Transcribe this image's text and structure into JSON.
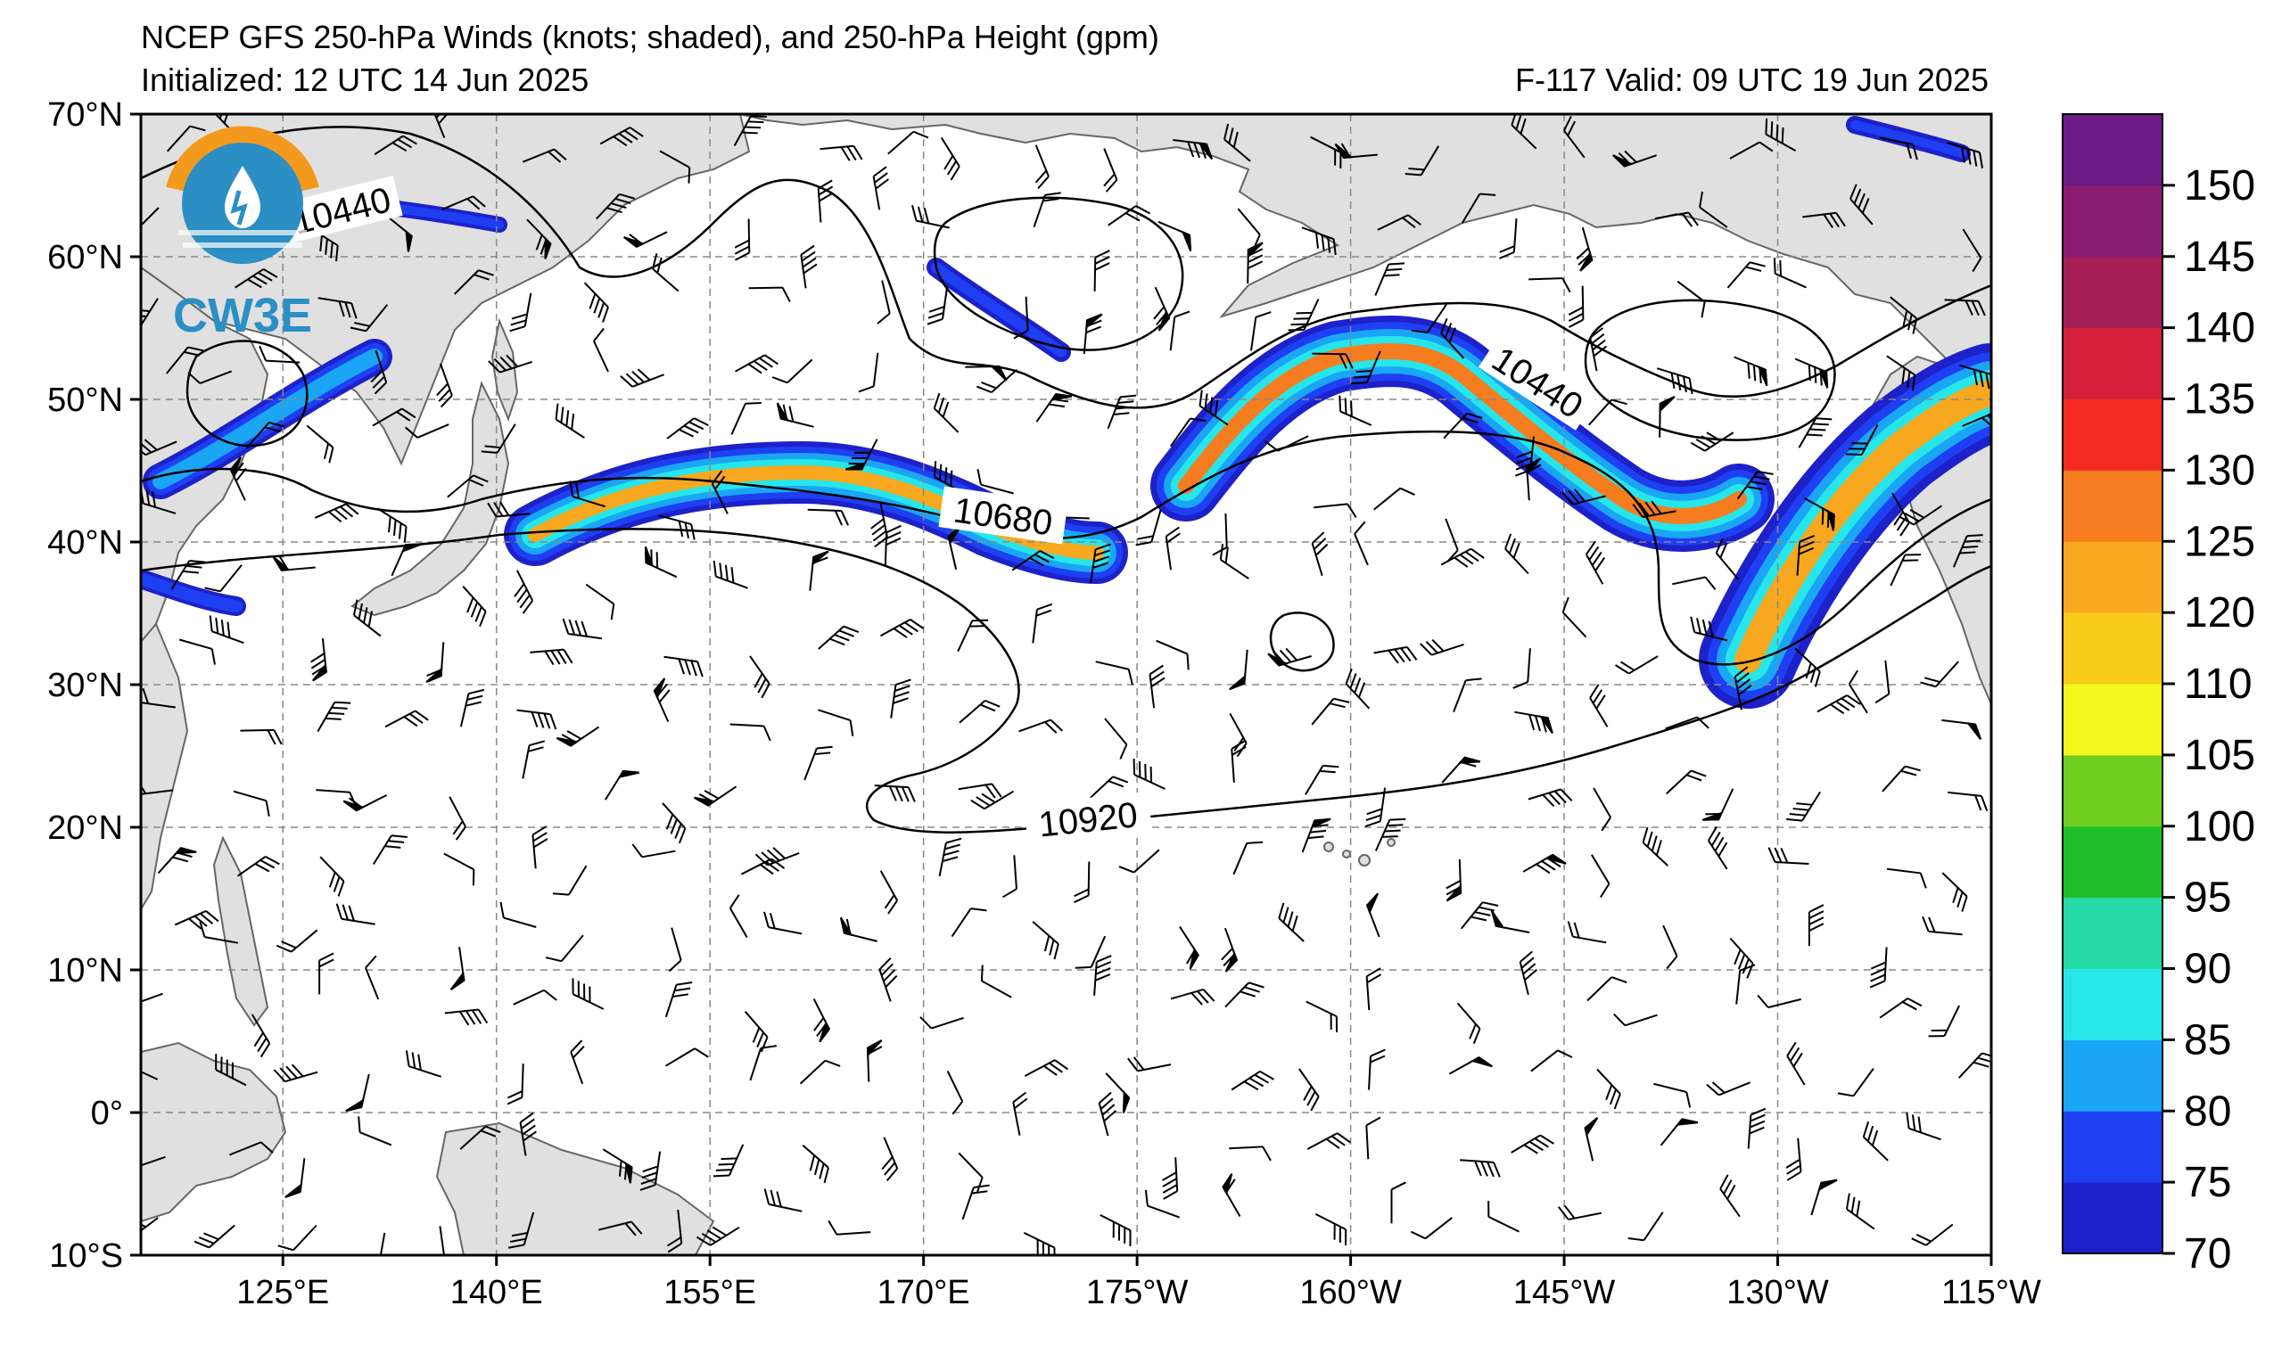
{
  "header": {
    "title": "NCEP GFS 250-hPa Winds (knots; shaded), and 250-hPa Height (gpm)",
    "initialized": "Initialized: 12 UTC 14 Jun 2025",
    "valid": "F-117  Valid: 09 UTC 19 Jun 2025"
  },
  "logo": {
    "text": "CW3E"
  },
  "map": {
    "lat_labels": [
      "70°N",
      "60°N",
      "50°N",
      "40°N",
      "30°N",
      "20°N",
      "10°N",
      "0°",
      "10°S"
    ],
    "lon_labels": [
      "125°E",
      "140°E",
      "155°E",
      "170°E",
      "175°W",
      "160°W",
      "145°W",
      "130°W",
      "115°W"
    ],
    "contour_labels": [
      "10440",
      "10440",
      "10680",
      "10920"
    ]
  },
  "colorbar": {
    "tick_labels": [
      "70",
      "75",
      "80",
      "85",
      "90",
      "95",
      "100",
      "105",
      "110",
      "120",
      "125",
      "130",
      "135",
      "140",
      "145",
      "150"
    ],
    "colors": [
      "#1d21c9",
      "#1f3ff2",
      "#1aa6f5",
      "#26e6ea",
      "#25d9a8",
      "#1fbf2a",
      "#6fce1f",
      "#f4f71e",
      "#f9cc1c",
      "#f8a81f",
      "#f57d20",
      "#f52a20",
      "#d51f3b",
      "#a51d56",
      "#8a1d72",
      "#6d1b86"
    ]
  },
  "colors": {
    "land": "#e0e0e0",
    "ocean": "#ffffff",
    "grid": "#888888",
    "contour": "#000000",
    "logo_orange": "#f39a1e",
    "logo_blue": "#2b8fc4"
  }
}
